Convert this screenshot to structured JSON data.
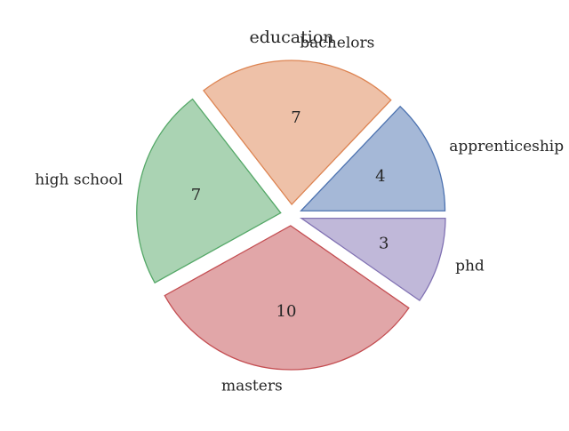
{
  "chart_data": {
    "type": "pie",
    "title": "education",
    "categories": [
      "apprenticeship",
      "bachelors",
      "high school",
      "masters",
      "phd"
    ],
    "values": [
      4,
      7,
      7,
      10,
      3
    ],
    "colors": [
      "#4c72b0",
      "#dd8452",
      "#55a868",
      "#c44e52",
      "#8172b3"
    ],
    "value_labels": [
      "4",
      "7",
      "7",
      "10",
      "3"
    ],
    "start_angle": 0,
    "direction": "counterclockwise",
    "exploded": true
  }
}
